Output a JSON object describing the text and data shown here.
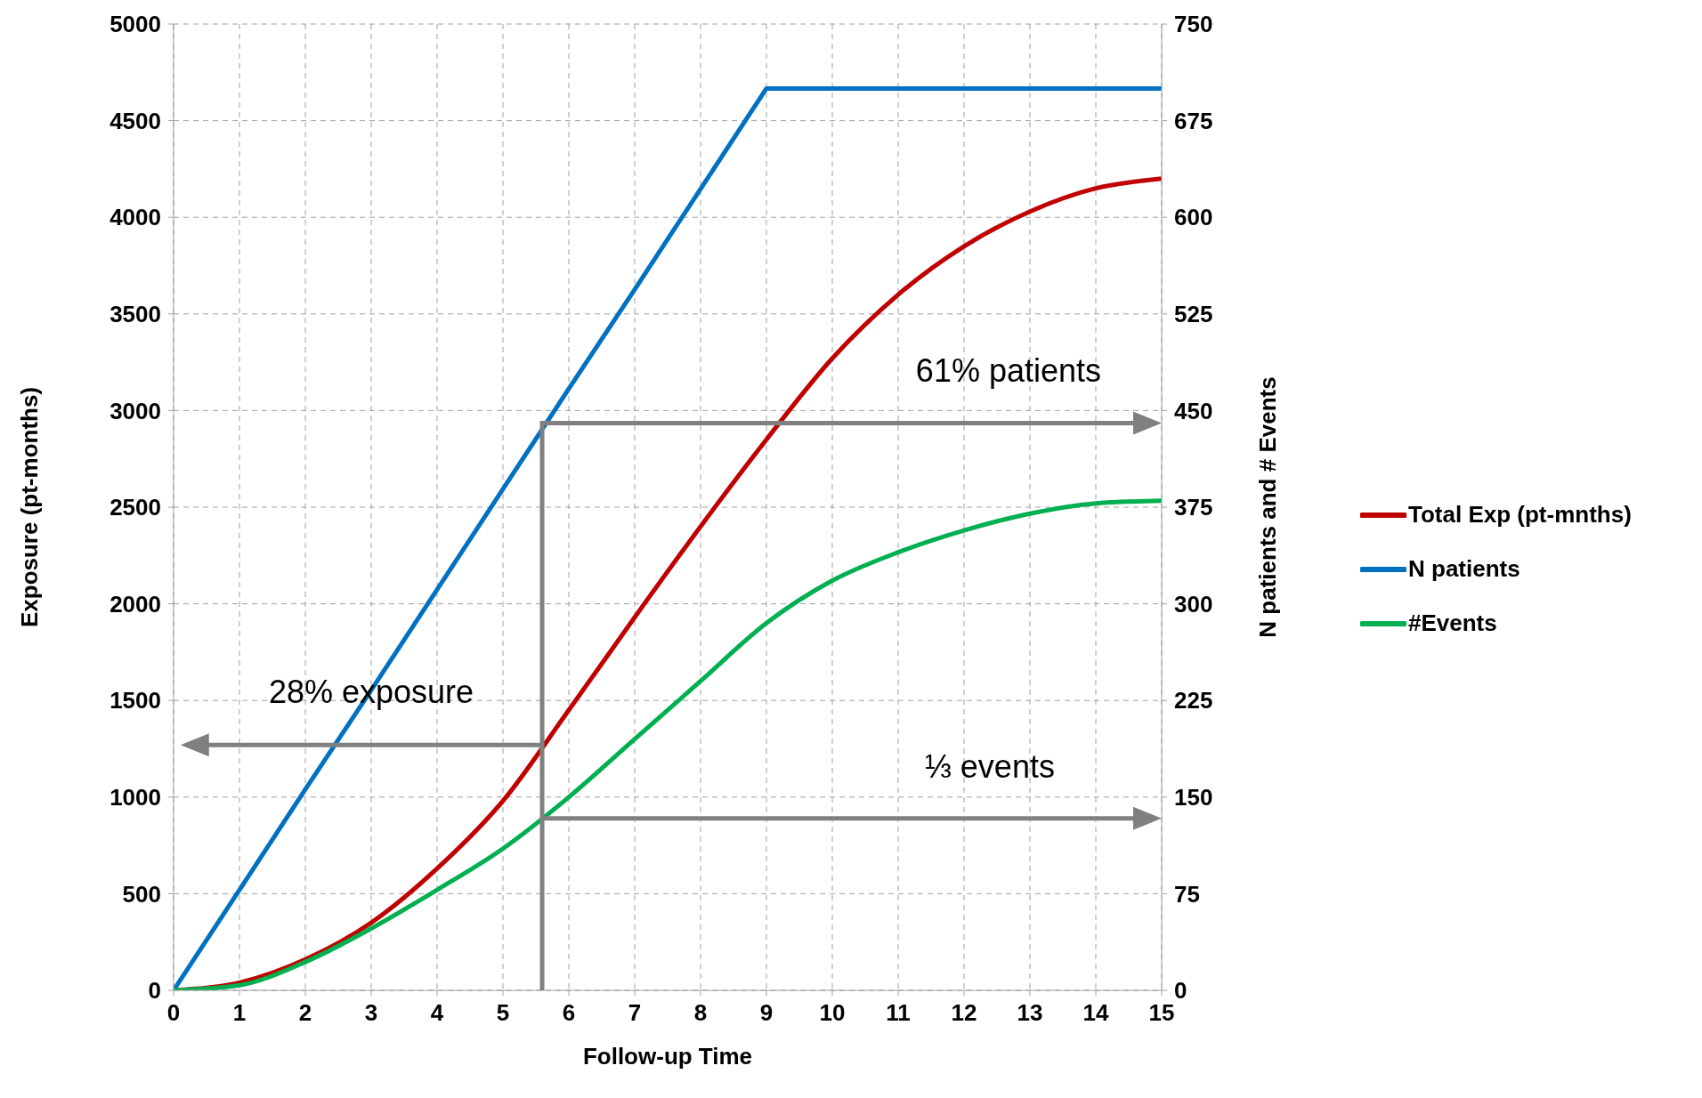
{
  "chart_data": {
    "type": "line",
    "xlabel": "Follow-up Time",
    "ylabel": "Exposure (pt-months)",
    "y2label": "N patients and # Events",
    "x": [
      0,
      1,
      2,
      3,
      4,
      5,
      6,
      7,
      8,
      9,
      10,
      11,
      12,
      13,
      14,
      15
    ],
    "series": [
      {
        "name": "Total Exp (pt-mnths)",
        "color": "#c00000",
        "values": [
          0,
          40,
          160,
          350,
          630,
          980,
          1450,
          1930,
          2400,
          2850,
          3270,
          3600,
          3850,
          4030,
          4150,
          4200
        ]
      },
      {
        "name": "N patients",
        "color": "#0070c0",
        "axis": "y2",
        "values": [
          0,
          78,
          156,
          233,
          311,
          389,
          467,
          544,
          622,
          700,
          700,
          700,
          700,
          700,
          700,
          700
        ]
      },
      {
        "name": "#Events",
        "color": "#00b050",
        "axis": "y2",
        "values": [
          0,
          4,
          22,
          48,
          78,
          110,
          150,
          195,
          240,
          285,
          318,
          340,
          357,
          370,
          378,
          380
        ]
      }
    ],
    "xlim": [
      0,
      15
    ],
    "xticks": [
      0,
      1,
      2,
      3,
      4,
      5,
      6,
      7,
      8,
      9,
      10,
      11,
      12,
      13,
      14,
      15
    ],
    "ylim": [
      0,
      5000
    ],
    "yticks": [
      0,
      500,
      1000,
      1500,
      2000,
      2500,
      3000,
      3500,
      4000,
      4500,
      5000
    ],
    "y2lim": [
      0,
      750
    ],
    "y2ticks": [
      0,
      75,
      150,
      225,
      300,
      375,
      450,
      525,
      600,
      675,
      750
    ],
    "annotations": [
      "28% exposure",
      "61% patients",
      "⅓ events"
    ],
    "grid": true,
    "legend": "right",
    "marker": "none",
    "line_style": "solid"
  }
}
